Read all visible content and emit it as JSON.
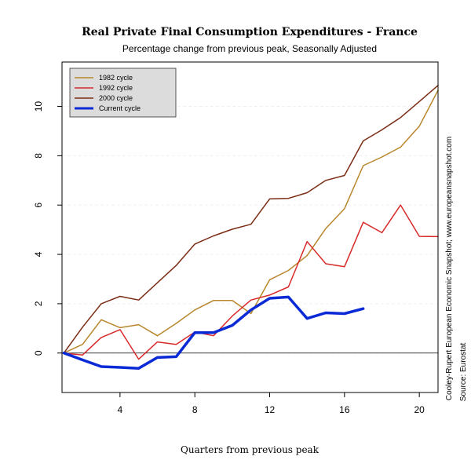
{
  "chart_data": {
    "type": "line",
    "title": "Real Private Final Consumption Expenditures - France",
    "subtitle": "Percentage change from previous peak, Seasonally Adjusted",
    "xlabel": "Quarters from previous peak",
    "ylabel": "",
    "xlim": [
      0.9,
      21
    ],
    "ylim": [
      -1.6,
      11.8
    ],
    "x_ticks": [
      4,
      8,
      12,
      16,
      20
    ],
    "y_ticks": [
      0,
      2,
      4,
      6,
      8,
      10
    ],
    "grid": true,
    "legend_position": "top-left",
    "notes": [
      "Cooley-Rupert European Economic Snapshot; www.europeansnapshot.com",
      "Source: Eurostat"
    ],
    "series": [
      {
        "name": "1982 cycle",
        "color": "#b8862b",
        "line_width": 1.5,
        "x": [
          1,
          2,
          3,
          4,
          5,
          6,
          7,
          8,
          9,
          10,
          11,
          12,
          13,
          14,
          15,
          16,
          17,
          18,
          19,
          20,
          21
        ],
        "values": [
          0,
          0.35,
          1.35,
          1.03,
          1.15,
          0.7,
          1.2,
          1.75,
          2.13,
          2.13,
          1.6,
          2.97,
          3.35,
          3.95,
          5.05,
          5.85,
          7.6,
          7.95,
          8.35,
          9.2,
          10.65
        ]
      },
      {
        "name": "1992 cycle",
        "color": "#d92a2a",
        "line_width": 1.5,
        "x": [
          1,
          2,
          3,
          4,
          5,
          6,
          7,
          8,
          9,
          10,
          11,
          12,
          13,
          14,
          15,
          16,
          17,
          18,
          19,
          20,
          21
        ],
        "values": [
          0,
          -0.08,
          0.63,
          0.95,
          -0.25,
          0.45,
          0.35,
          0.85,
          0.7,
          1.5,
          2.15,
          2.35,
          2.68,
          4.52,
          3.62,
          3.5,
          5.3,
          4.88,
          6.0,
          4.73,
          4.72
        ]
      },
      {
        "name": "2000 cycle",
        "color": "#7b2c14",
        "line_width": 1.5,
        "x": [
          1,
          2,
          3,
          4,
          5,
          6,
          7,
          8,
          9,
          10,
          11,
          12,
          13,
          14,
          15,
          16,
          17,
          18,
          19,
          20,
          21
        ],
        "values": [
          0,
          1.05,
          2.0,
          2.3,
          2.15,
          2.85,
          3.55,
          4.42,
          4.75,
          5.02,
          5.22,
          6.25,
          6.27,
          6.5,
          7.0,
          7.2,
          8.6,
          9.05,
          9.55,
          10.2,
          10.85
        ]
      },
      {
        "name": "Current cycle",
        "color": "#0a2ad6",
        "line_width": 3.5,
        "x": [
          1,
          2,
          3,
          4,
          5,
          6,
          7,
          8,
          9,
          10,
          11,
          12,
          13,
          14,
          15,
          16,
          17
        ],
        "values": [
          0,
          -0.28,
          -0.55,
          -0.58,
          -0.62,
          -0.18,
          -0.15,
          0.83,
          0.83,
          1.12,
          1.75,
          2.22,
          2.27,
          1.4,
          1.63,
          1.6,
          1.8
        ]
      }
    ]
  }
}
